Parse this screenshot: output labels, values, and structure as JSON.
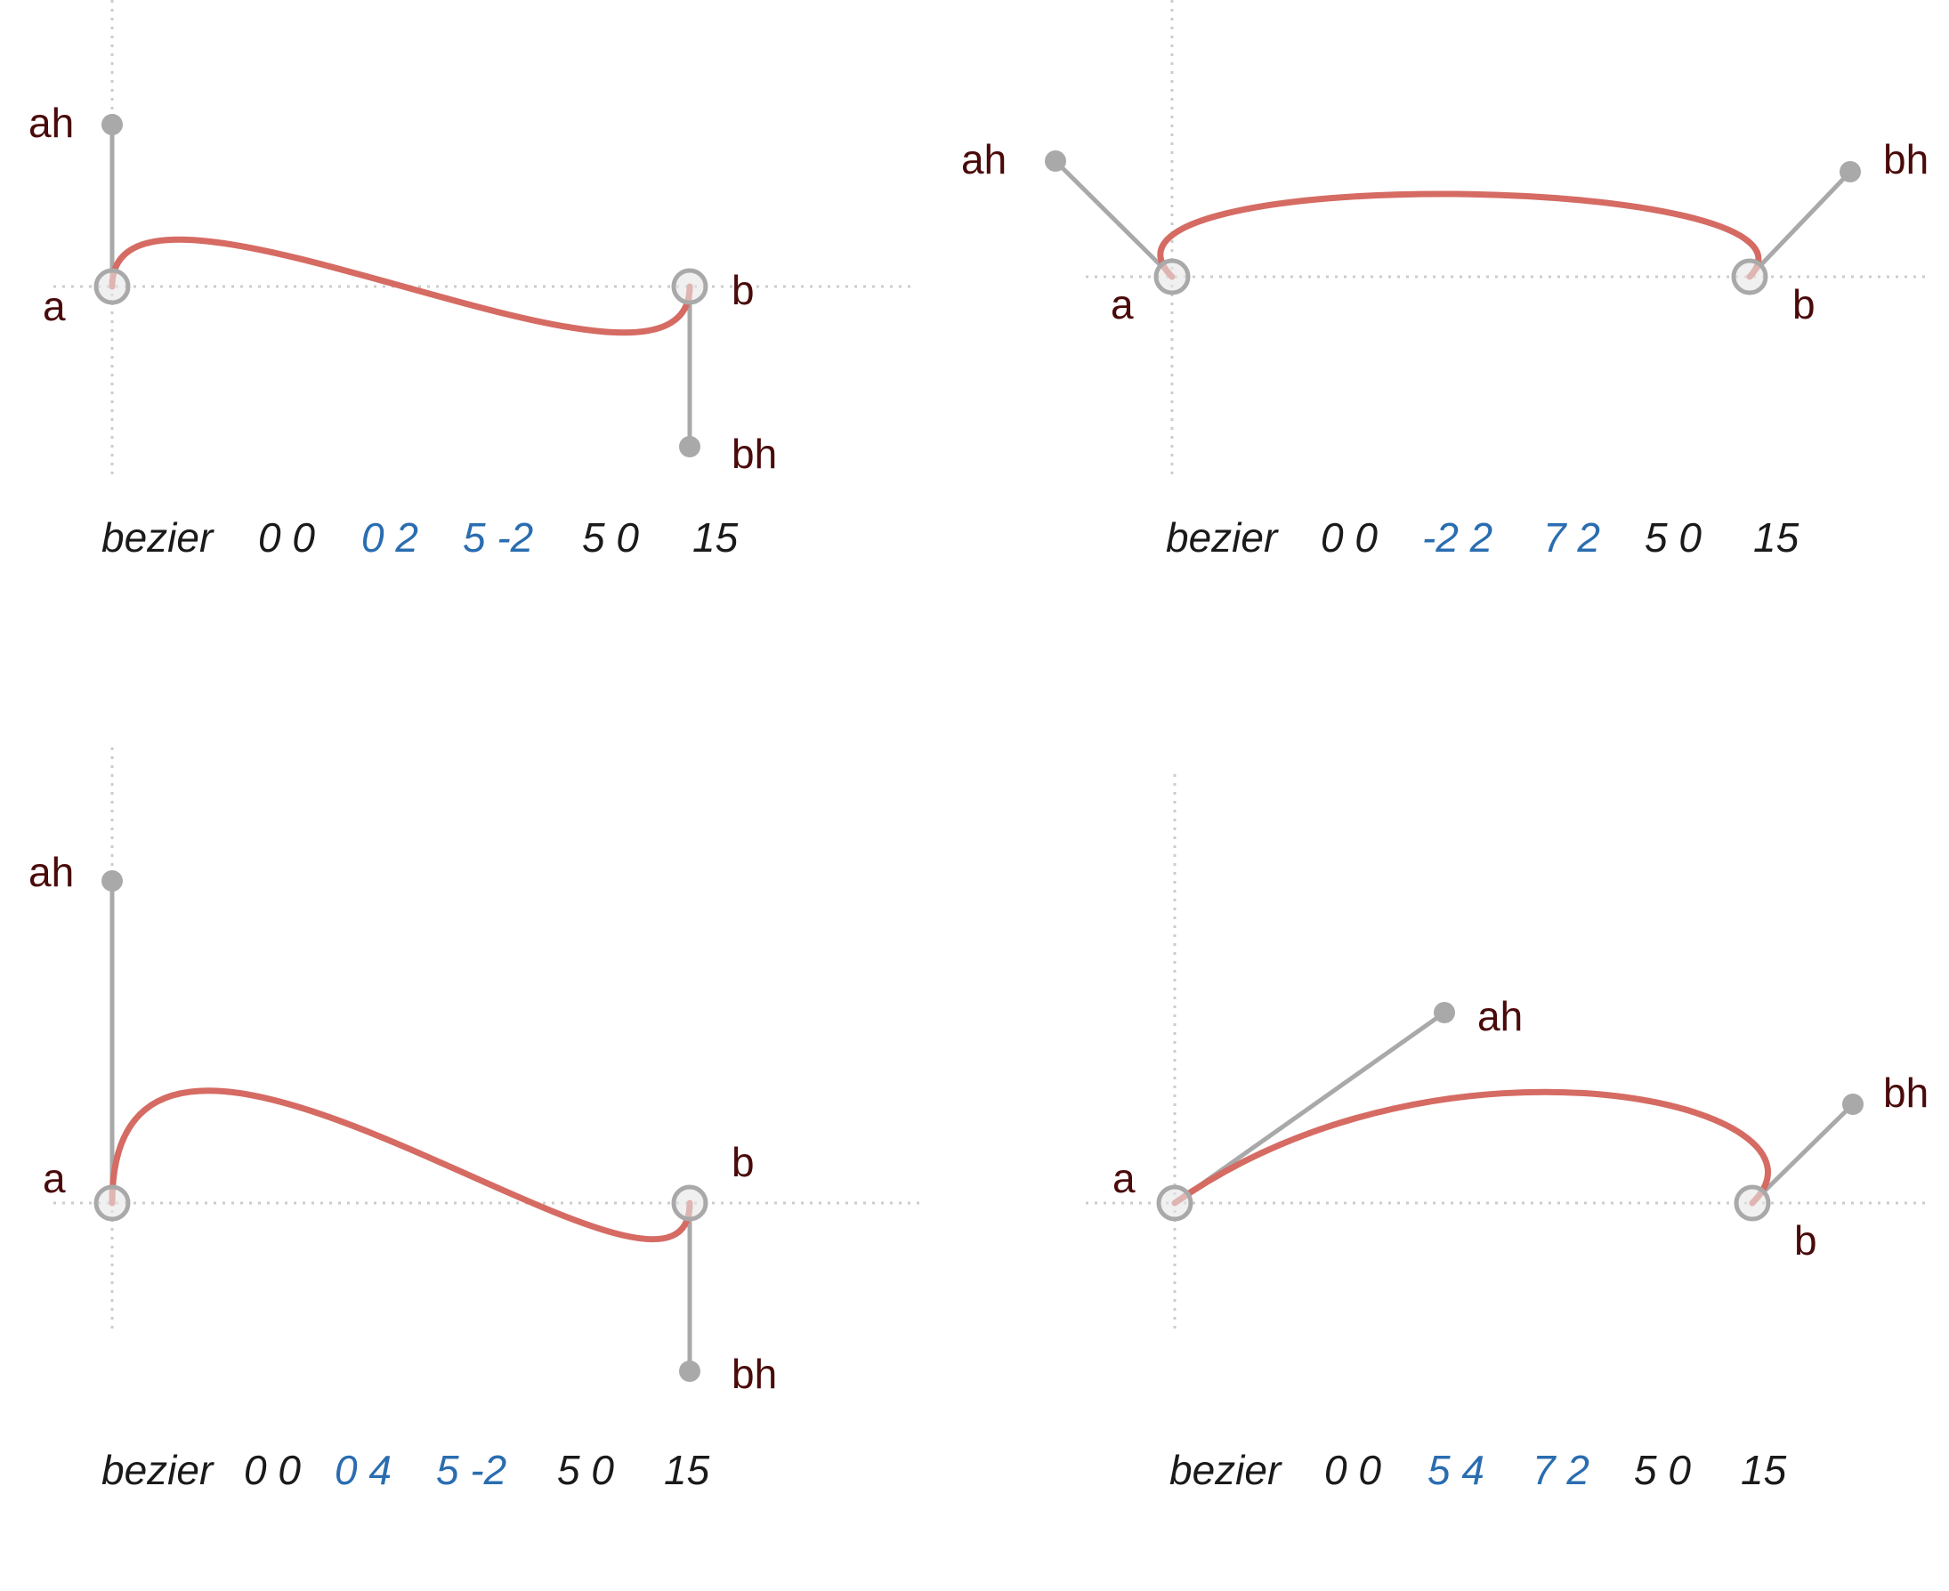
{
  "colors": {
    "curve": "#d56b63",
    "handle": "#a9a9a9",
    "guide": "#cccccc",
    "label": "#4a0a0a",
    "caption": "#1a1a1a",
    "caption_accent": "#2a6db0"
  },
  "panels": [
    {
      "labels": {
        "a": "a",
        "b": "b",
        "ah": "ah",
        "bh": "bh"
      },
      "caption": {
        "keyword": "bezier",
        "start": "0 0",
        "handle_a": "0 2",
        "handle_b": "5 -2",
        "end": "5 0",
        "steps": "15"
      }
    },
    {
      "labels": {
        "a": "a",
        "b": "b",
        "ah": "ah",
        "bh": "bh"
      },
      "caption": {
        "keyword": "bezier",
        "start": "0 0",
        "handle_a": "-2 2",
        "handle_b": "7 2",
        "end": "5 0",
        "steps": "15"
      }
    },
    {
      "labels": {
        "a": "a",
        "b": "b",
        "ah": "ah",
        "bh": "bh"
      },
      "caption": {
        "keyword": "bezier",
        "start": "0 0",
        "handle_a": "0 4",
        "handle_b": "5 -2",
        "end": "5 0",
        "steps": "15"
      }
    },
    {
      "labels": {
        "a": "a",
        "b": "b",
        "ah": "ah",
        "bh": "bh"
      },
      "caption": {
        "keyword": "bezier",
        "start": "0 0",
        "handle_a": "5 4",
        "handle_b": "7 2",
        "end": "5 0",
        "steps": "15"
      }
    }
  ]
}
